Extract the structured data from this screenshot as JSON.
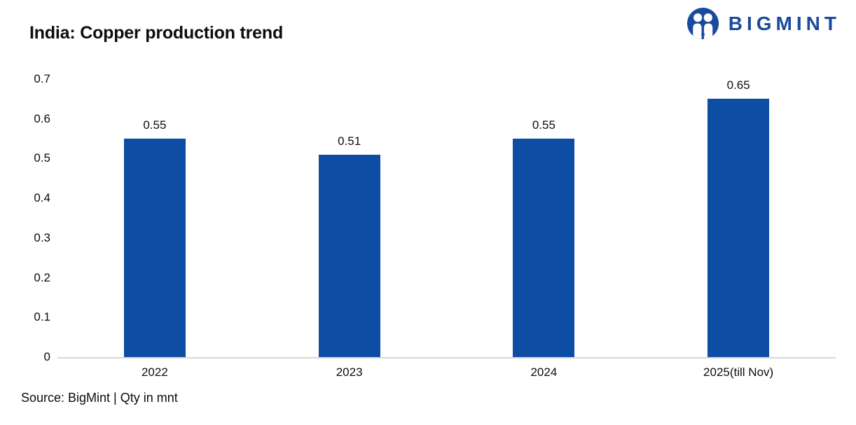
{
  "header": {
    "title": "India: Copper production trend",
    "logo_text": "BIGMINT",
    "logo_color": "#1a4a9c"
  },
  "footer": {
    "source": "Source: BigMint | Qty in mnt"
  },
  "chart_data": {
    "type": "bar",
    "title": "India: Copper production trend",
    "categories": [
      "2022",
      "2023",
      "2024",
      "2025(till Nov)"
    ],
    "values": [
      0.55,
      0.51,
      0.55,
      0.65
    ],
    "data_labels": [
      "0.55",
      "0.51",
      "0.55",
      "0.65"
    ],
    "ylim": [
      0,
      0.7
    ],
    "yticks": [
      0,
      0.1,
      0.2,
      0.3,
      0.4,
      0.5,
      0.6,
      0.7
    ],
    "ytick_labels": [
      "0",
      "0.1",
      "0.2",
      "0.3",
      "0.4",
      "0.5",
      "0.6",
      "0.7"
    ],
    "bar_color": "#0d4da4",
    "grid": false,
    "legend": false,
    "unit": "mnt",
    "source": "BigMint"
  }
}
